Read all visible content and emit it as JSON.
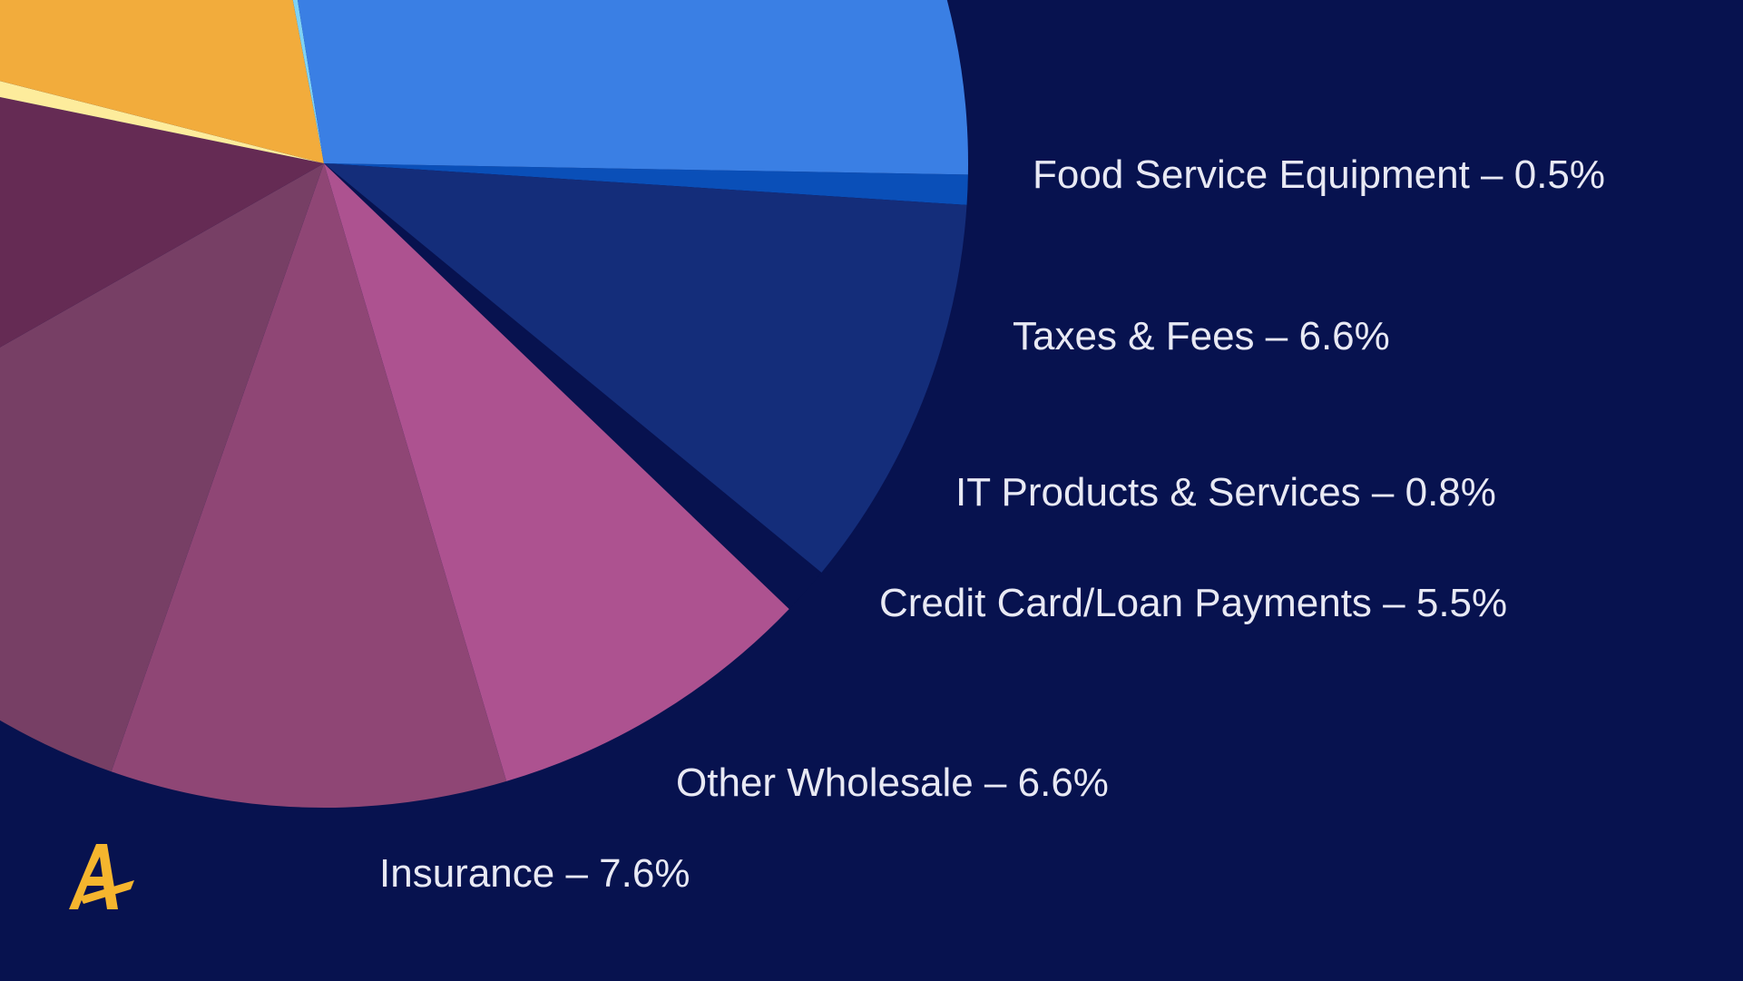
{
  "chart_data": {
    "type": "pie",
    "title": "",
    "slices": [
      {
        "label": "Food Service Equipment – 0.5%",
        "value": 0.5,
        "color": "#0a4fb8"
      },
      {
        "label": "Taxes & Fees – 6.6%",
        "value": 6.6,
        "color": "#142d7a"
      },
      {
        "label": "IT Products & Services – 0.8%",
        "value": 0.8,
        "color": "#07124f"
      },
      {
        "label": "Credit Card/Loan Payments – 5.5%",
        "value": 5.5,
        "color": "#ad5290"
      },
      {
        "label": "Other Wholesale – 6.6%",
        "value": 6.6,
        "color": "#8f4675"
      },
      {
        "label": "Insurance – 7.6%",
        "value": 7.6,
        "color": "#773f65"
      },
      {
        "label": "",
        "value": 7.6,
        "color": "#652b54"
      },
      {
        "label": "",
        "value": 0.5,
        "color": "#fdec9c"
      },
      {
        "label": "",
        "value": 12.0,
        "color": "#f2ac3c"
      },
      {
        "label": "",
        "value": 0.3,
        "color": "#7fd3f5"
      },
      {
        "label": "",
        "value": 18.5,
        "color": "#3a7fe4"
      }
    ],
    "legend": "none",
    "labels": [
      "Food Service Equipment – 0.5%",
      "Taxes & Fees – 6.6%",
      "IT Products & Services – 0.8%",
      "Credit Card/Loan Payments – 5.5%",
      "Other Wholesale – 6.6%",
      "Insurance – 7.6%"
    ]
  },
  "colors": {
    "background": "#07124f",
    "label_text": "#e8e9f4",
    "logo": "#f5b52e"
  },
  "logo": {
    "icon": "a-logo-icon"
  }
}
